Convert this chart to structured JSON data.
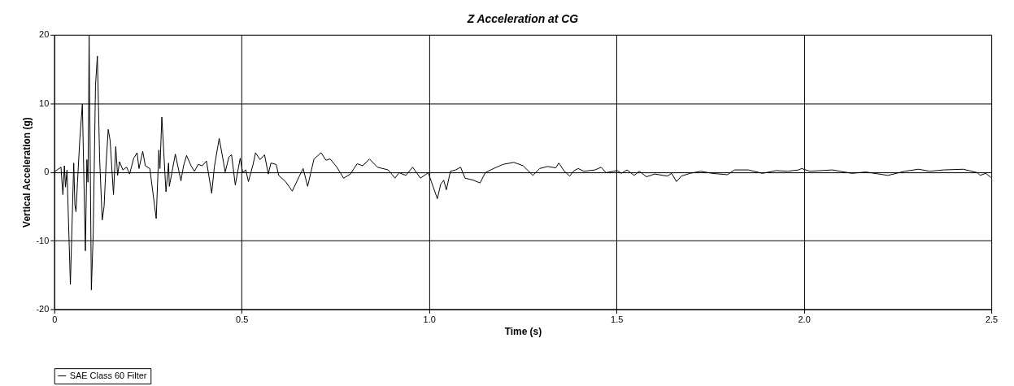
{
  "chart_data": {
    "type": "line",
    "title": "Z Acceleration at CG",
    "xlabel": "Time (s)",
    "ylabel": "Vertical Acceleration (g)",
    "xlim": [
      0,
      2.5
    ],
    "xticks": [
      0,
      0.5,
      {
        "value": 1,
        "label": "1.0"
      },
      1.5,
      {
        "value": 2,
        "label": "2.0"
      },
      2.5
    ],
    "ylim": [
      -20,
      20
    ],
    "yticks": [
      -20,
      -10,
      0,
      10,
      20
    ],
    "grid": true,
    "legend": "bottom left",
    "marker": "none",
    "line_style": "solid",
    "series": [
      {
        "name": "SAE Class 60 Filter",
        "color": "#000000",
        "x": [
          0,
          0.018,
          0.023,
          0.027,
          0.03,
          0.034,
          0.037,
          0.043,
          0.052,
          0.055,
          0.058,
          0.062,
          0.068,
          0.075,
          0.083,
          0.087,
          0.09,
          0.093,
          0.099,
          0.104,
          0.11,
          0.115,
          0.121,
          0.128,
          0.133,
          0.138,
          0.144,
          0.149,
          0.158,
          0.164,
          0.169,
          0.174,
          0.183,
          0.193,
          0.201,
          0.212,
          0.221,
          0.226,
          0.236,
          0.243,
          0.255,
          0.272,
          0.279,
          0.282,
          0.287,
          0.298,
          0.305,
          0.307,
          0.323,
          0.338,
          0.345,
          0.353,
          0.365,
          0.374,
          0.384,
          0.395,
          0.406,
          0.42,
          0.427,
          0.44,
          0.449,
          0.456,
          0.466,
          0.473,
          0.483,
          0.496,
          0.503,
          0.511,
          0.518,
          0.53,
          0.537,
          0.549,
          0.561,
          0.571,
          0.578,
          0.592,
          0.599,
          0.617,
          0.635,
          0.653,
          0.664,
          0.676,
          0.693,
          0.712,
          0.725,
          0.736,
          0.754,
          0.772,
          0.79,
          0.808,
          0.823,
          0.841,
          0.862,
          0.891,
          0.909,
          0.92,
          0.938,
          0.956,
          0.977,
          0.998,
          1.006,
          1.022,
          1.031,
          1.039,
          1.046,
          1.057,
          1.071,
          1.084,
          1.096,
          1.118,
          1.136,
          1.15,
          1.172,
          1.197,
          1.226,
          1.251,
          1.277,
          1.295,
          1.316,
          1.338,
          1.346,
          1.361,
          1.375,
          1.387,
          1.398,
          1.413,
          1.443,
          1.459,
          1.472,
          1.502,
          1.513,
          1.528,
          1.547,
          1.561,
          1.58,
          1.602,
          1.636,
          1.647,
          1.66,
          1.673,
          1.696,
          1.725,
          1.755,
          1.796,
          1.815,
          1.852,
          1.889,
          1.926,
          1.956,
          1.986,
          1.994,
          2.016,
          2.076,
          2.128,
          2.165,
          2.224,
          2.269,
          2.306,
          2.336,
          2.373,
          2.425,
          2.463,
          2.47,
          2.485,
          2.499
        ],
        "values": [
          0,
          0.7,
          -3.3,
          0.9,
          -2.2,
          0.3,
          -5.4,
          -16.4,
          1.3,
          -4.8,
          -5.8,
          -1.5,
          4.6,
          9.9,
          -11.5,
          1.8,
          -1.5,
          19.9,
          -17.2,
          -8.9,
          12.6,
          16.9,
          2.0,
          -7.0,
          -5.0,
          0.9,
          6.2,
          4.6,
          -3.3,
          3.7,
          -0.5,
          1.5,
          0.3,
          0.7,
          -0.3,
          2.0,
          2.8,
          0.5,
          3.0,
          0.9,
          0.5,
          -6.8,
          3.2,
          0.5,
          8.0,
          -2.9,
          1.3,
          -2.1,
          2.6,
          -1.3,
          0.9,
          2.4,
          0.9,
          0.1,
          1.1,
          0.9,
          1.6,
          -3.1,
          0.7,
          4.9,
          2.2,
          0,
          2.2,
          2.5,
          -1.9,
          2.0,
          -0.1,
          0.3,
          -1.4,
          1.0,
          2.8,
          1.8,
          2.5,
          -0.3,
          1.3,
          1.1,
          -0.5,
          -1.4,
          -2.8,
          -0.7,
          0.5,
          -2.1,
          1.9,
          2.8,
          1.7,
          1.9,
          0.7,
          -0.9,
          -0.3,
          1.2,
          0.9,
          1.9,
          0.7,
          0.3,
          -0.9,
          -0.1,
          -0.5,
          0.7,
          -0.9,
          -0.1,
          -1.4,
          -3.9,
          -1.8,
          -1.2,
          -2.6,
          0.1,
          0.3,
          0.7,
          -0.9,
          -1.2,
          -1.6,
          -0.1,
          0.5,
          1.1,
          1.4,
          0.9,
          -0.5,
          0.5,
          0.8,
          0.6,
          1.3,
          0.1,
          -0.6,
          0.2,
          0.5,
          0.1,
          0.3,
          0.7,
          -0.1,
          0.2,
          -0.2,
          0.3,
          -0.5,
          0.1,
          -0.7,
          -0.3,
          -0.6,
          -0.2,
          -1.4,
          -0.6,
          -0.2,
          0.1,
          -0.2,
          -0.4,
          0.3,
          0.3,
          -0.2,
          0.2,
          0.1,
          0.3,
          0.5,
          0.1,
          0.3,
          -0.2,
          0,
          -0.5,
          0.1,
          0.4,
          0.1,
          0.3,
          0.4,
          -0.1,
          -0.5,
          -0.2,
          -0.8
        ]
      }
    ]
  }
}
